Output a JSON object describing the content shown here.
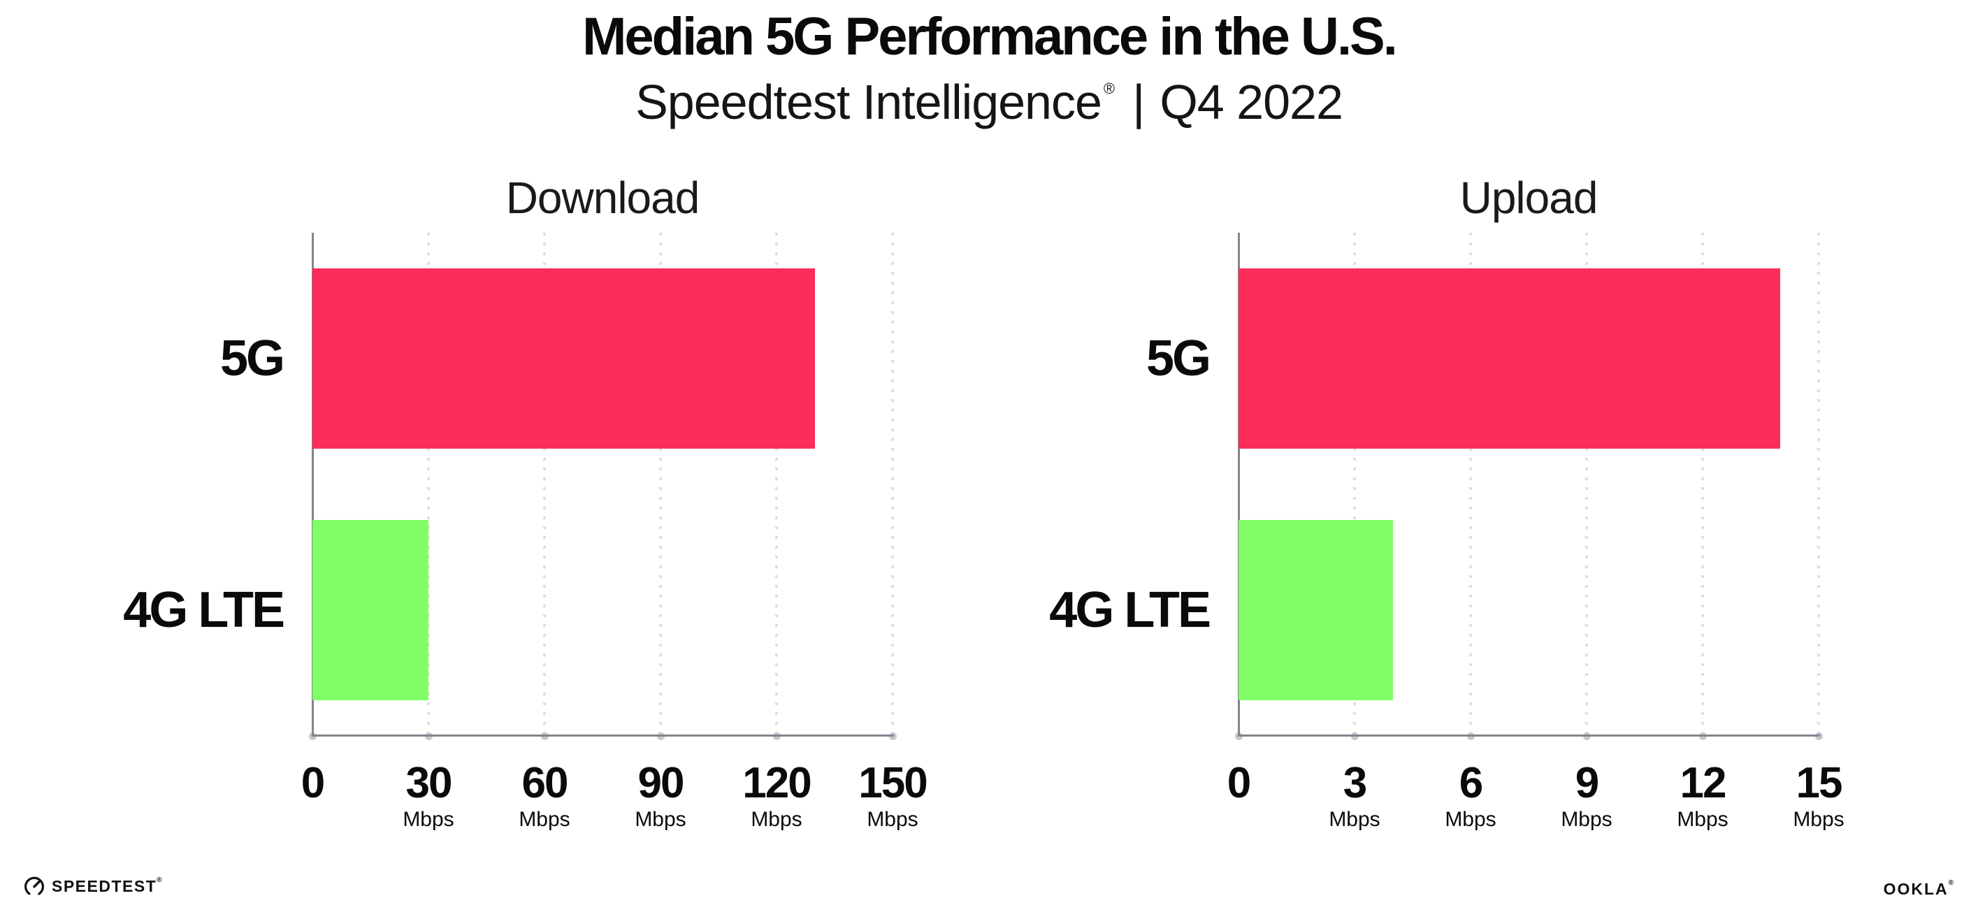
{
  "header": {
    "title": "Median 5G Performance in the U.S.",
    "subtitle_brand": "Speedtest Intelligence",
    "subtitle_registered": "®",
    "subtitle_separator": "|",
    "subtitle_period": "Q4 2022"
  },
  "chart_data": [
    {
      "type": "bar",
      "orientation": "horizontal",
      "title": "Download",
      "categories": [
        "5G",
        "4G LTE"
      ],
      "values": [
        130,
        30
      ],
      "unit": "Mbps",
      "xlim": [
        0,
        150
      ],
      "xticks": [
        0,
        30,
        60,
        90,
        120,
        150
      ],
      "tick_unit_label": "Mbps",
      "bar_colors": [
        "#fc2e59",
        "#80ff66"
      ],
      "grid": "dotted-vertical",
      "legend": "none"
    },
    {
      "type": "bar",
      "orientation": "horizontal",
      "title": "Upload",
      "categories": [
        "5G",
        "4G LTE"
      ],
      "values": [
        14,
        4
      ],
      "unit": "Mbps",
      "xlim": [
        0,
        15
      ],
      "xticks": [
        0,
        3,
        6,
        9,
        12,
        15
      ],
      "tick_unit_label": "Mbps",
      "bar_colors": [
        "#fc2e59",
        "#80ff66"
      ],
      "grid": "dotted-vertical",
      "legend": "none"
    }
  ],
  "footer": {
    "speedtest_logo_text": "SPEEDTEST",
    "speedtest_registered": "®",
    "ookla_logo_text": "OOKLA",
    "ookla_registered": "®"
  },
  "colors": {
    "bar_5g": "#fc2e59",
    "bar_4g_lte": "#80ff66",
    "axis_line": "#85858c",
    "gridline_dots": "#dcdce8",
    "tick_dot": "#c7c7d3",
    "text": "#0c0c0c",
    "background": "#ffffff"
  }
}
